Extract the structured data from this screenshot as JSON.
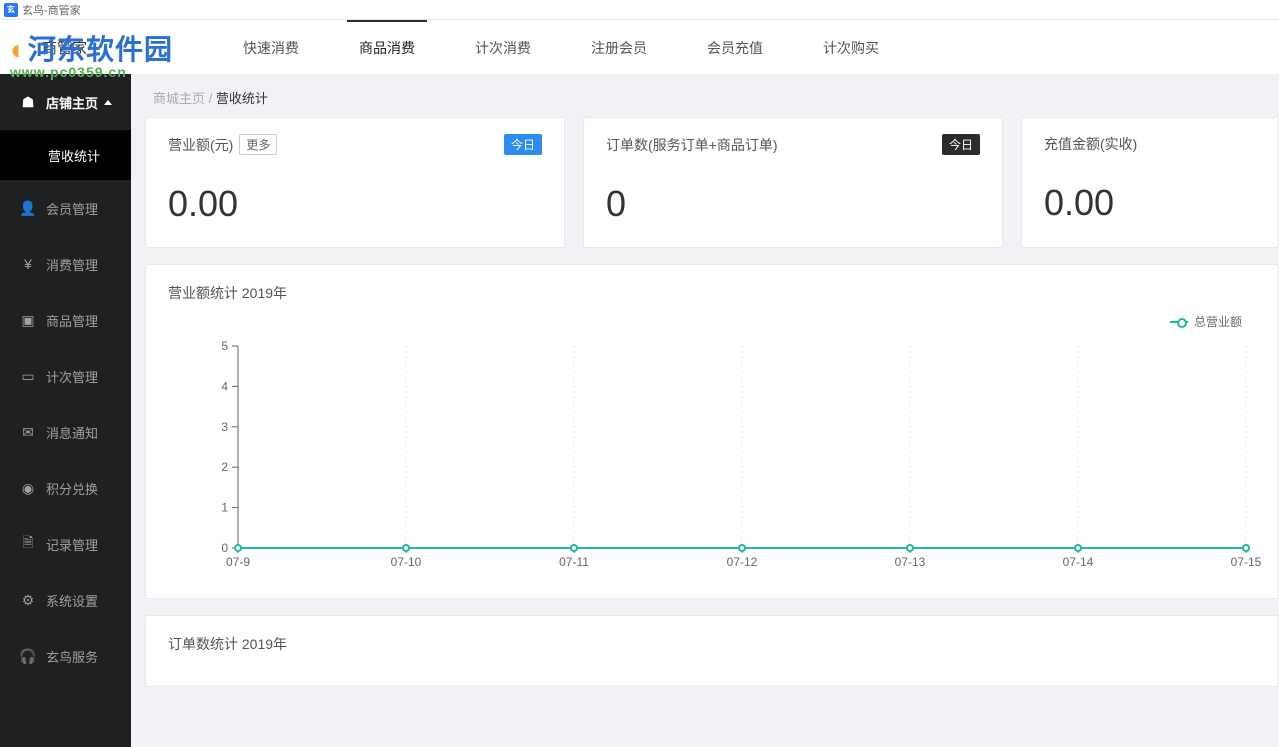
{
  "window": {
    "title": "玄鸟-商管家"
  },
  "watermark": {
    "line1_a": "河东",
    "line1_b": "软件园",
    "line2": "www.pc0359.cn"
  },
  "brand": "商管家",
  "tabs": [
    {
      "label": "快速消费",
      "active": false
    },
    {
      "label": "商品消费",
      "active": true
    },
    {
      "label": "计次消费",
      "active": false
    },
    {
      "label": "注册会员",
      "active": false
    },
    {
      "label": "会员充值",
      "active": false
    },
    {
      "label": "计次购买",
      "active": false
    }
  ],
  "sidebar": {
    "section": "店铺主页",
    "submenu_active": "营收统计",
    "items": [
      {
        "label": "会员管理",
        "icon": "user-icon"
      },
      {
        "label": "消费管理",
        "icon": "yen-icon"
      },
      {
        "label": "商品管理",
        "icon": "box-icon"
      },
      {
        "label": "计次管理",
        "icon": "card-icon"
      },
      {
        "label": "消息通知",
        "icon": "mail-icon"
      },
      {
        "label": "积分兑换",
        "icon": "coin-icon"
      },
      {
        "label": "记录管理",
        "icon": "doc-icon"
      },
      {
        "label": "系统设置",
        "icon": "gear-icon"
      },
      {
        "label": "玄鸟服务",
        "icon": "headset-icon"
      }
    ]
  },
  "breadcrumb": {
    "root": "商城主页",
    "sep": "/",
    "current": "营收统计"
  },
  "stats": {
    "revenue": {
      "title": "营业额(元)",
      "more": "更多",
      "badge": "今日",
      "value": "0.00"
    },
    "orders": {
      "title": "订单数(服务订单+商品订单)",
      "badge": "今日",
      "value": "0"
    },
    "topup": {
      "title": "充值金额(实收)",
      "value": "0.00"
    }
  },
  "revenue_chart": {
    "title": "营业额统计 2019年",
    "legend_label": "总营业额",
    "type": "line",
    "series_color": "#1abc9c",
    "line_width": 2,
    "marker": "circle-open",
    "marker_size": 6,
    "background_color": "#ffffff",
    "grid_color": "#e8e8e8",
    "axis_color": "#666666",
    "tick_fontsize": 12,
    "ylim": [
      0,
      5
    ],
    "ytick_step": 1,
    "categories": [
      "07-9",
      "07-10",
      "07-11",
      "07-12",
      "07-13",
      "07-14",
      "07-15"
    ],
    "values": [
      0,
      0,
      0,
      0,
      0,
      0,
      0
    ]
  },
  "orders_chart": {
    "title": "订单数统计 2019年"
  }
}
